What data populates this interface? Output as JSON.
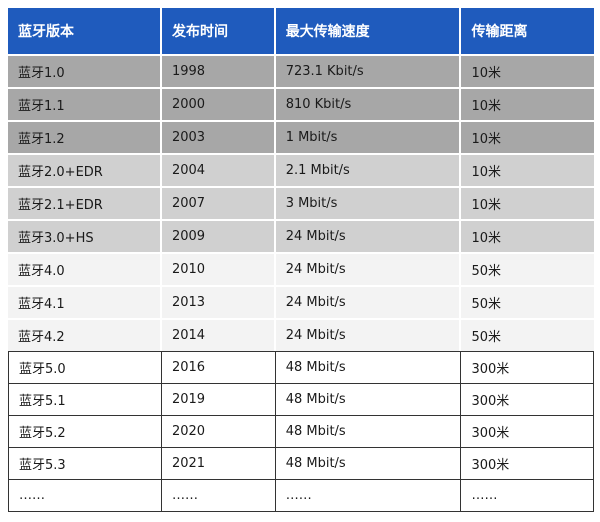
{
  "table": {
    "headers": [
      "蓝牙版本",
      "发布时间",
      "最大传输速度",
      "传输距离"
    ],
    "rows": [
      [
        "蓝牙1.0",
        "1998",
        "723.1 Kbit/s",
        "10米"
      ],
      [
        "蓝牙1.1",
        "2000",
        "810 Kbit/s",
        "10米"
      ],
      [
        "蓝牙1.2",
        "2003",
        "1 Mbit/s",
        "10米"
      ],
      [
        "蓝牙2.0+EDR",
        "2004",
        "2.1 Mbit/s",
        "10米"
      ],
      [
        "蓝牙2.1+EDR",
        "2007",
        "3 Mbit/s",
        "10米"
      ],
      [
        "蓝牙3.0+HS",
        "2009",
        "24 Mbit/s",
        "10米"
      ],
      [
        "蓝牙4.0",
        "2010",
        "24 Mbit/s",
        "50米"
      ],
      [
        "蓝牙4.1",
        "2013",
        "24 Mbit/s",
        "50米"
      ],
      [
        "蓝牙4.2",
        "2014",
        "24 Mbit/s",
        "50米"
      ],
      [
        "蓝牙5.0",
        "2016",
        "48 Mbit/s",
        "300米"
      ],
      [
        "蓝牙5.1",
        "2019",
        "48 Mbit/s",
        "300米"
      ],
      [
        "蓝牙5.2",
        "2020",
        "48 Mbit/s",
        "300米"
      ],
      [
        "蓝牙5.3",
        "2021",
        "48 Mbit/s",
        "300米"
      ],
      [
        "……",
        "……",
        "……",
        "……"
      ]
    ],
    "colors": {
      "header_bg": "#1f5bbd",
      "header_text": "#ffffff",
      "row_dark": "#a7a7a7",
      "row_mid": "#d0d0d0",
      "row_light": "#f3f3f3",
      "row_white": "#ffffff"
    }
  }
}
